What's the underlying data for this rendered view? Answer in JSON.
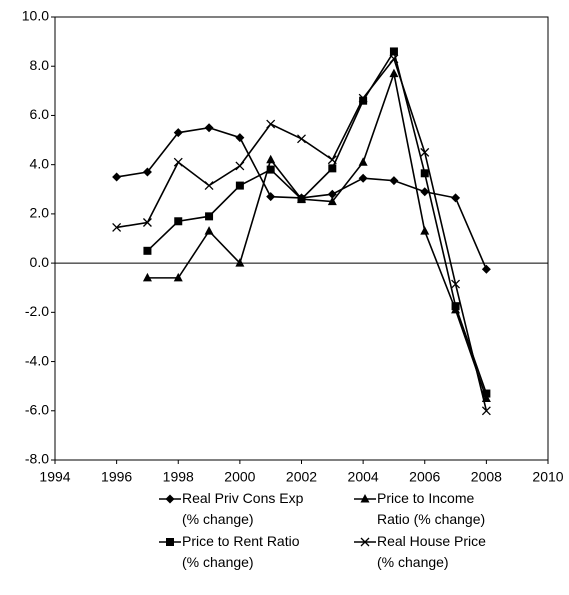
{
  "chart_data": {
    "type": "line",
    "x": [
      1996,
      1997,
      1998,
      1999,
      2000,
      2001,
      2002,
      2003,
      2004,
      2005,
      2006,
      2007,
      2008
    ],
    "series": [
      {
        "name": "Real Priv Cons Exp (% change)",
        "color": "#000000",
        "marker": "diamond",
        "values": [
          3.5,
          3.7,
          5.3,
          5.5,
          5.1,
          2.7,
          2.65,
          2.8,
          3.45,
          3.35,
          2.9,
          2.65,
          -0.25
        ]
      },
      {
        "name": "Price to Income Ratio (% change)",
        "color": "#000000",
        "marker": "triangle",
        "values": [
          null,
          -0.6,
          -0.6,
          1.3,
          0.0,
          4.2,
          2.6,
          2.5,
          4.1,
          7.7,
          1.3,
          -1.9,
          -5.5
        ]
      },
      {
        "name": "Price to Rent Ratio (% change)",
        "color": "#000000",
        "marker": "square",
        "values": [
          null,
          0.5,
          1.7,
          1.9,
          3.15,
          3.8,
          2.6,
          3.85,
          6.6,
          8.6,
          3.65,
          -1.75,
          -5.3
        ]
      },
      {
        "name": "Real House Price (% change)",
        "color": "#000000",
        "marker": "x",
        "values": [
          1.45,
          1.65,
          4.1,
          3.15,
          3.95,
          5.65,
          5.05,
          4.2,
          6.7,
          8.3,
          4.5,
          -0.85,
          -6.0
        ]
      }
    ],
    "xlim": [
      1994,
      2010
    ],
    "xticks": [
      1994,
      1996,
      1998,
      2000,
      2002,
      2004,
      2006,
      2008,
      2010
    ],
    "ylim": [
      -8,
      10
    ],
    "yticks": [
      {
        "value": -8,
        "label": "-8.0"
      },
      {
        "value": -6,
        "label": "-6.0"
      },
      {
        "value": -4,
        "label": "-4.0"
      },
      {
        "value": -2,
        "label": "-2.0"
      },
      {
        "value": 0,
        "label": "0.0"
      },
      {
        "value": 2,
        "label": "2.0"
      },
      {
        "value": 4,
        "label": "4.0"
      },
      {
        "value": 6,
        "label": "6.0"
      },
      {
        "value": 8,
        "label": "8.0"
      },
      {
        "value": 10,
        "label": "10.0"
      }
    ],
    "grid": false,
    "legend": "bottom"
  }
}
